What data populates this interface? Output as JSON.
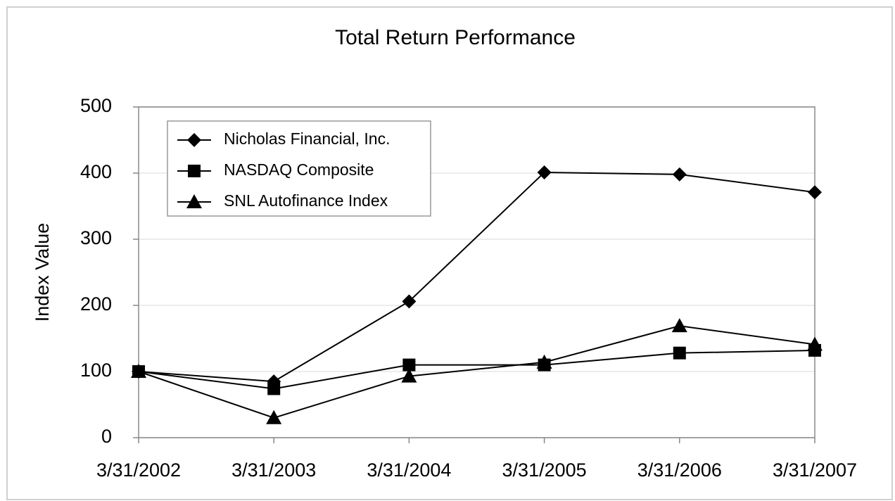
{
  "chart_data": {
    "type": "line",
    "title": "Total Return Performance",
    "y_label": "Index Value",
    "categories": [
      "3/31/2002",
      "3/31/2003",
      "3/31/2004",
      "3/31/2005",
      "3/31/2006",
      "3/31/2007"
    ],
    "series": [
      {
        "name": "Nicholas Financial, Inc.",
        "color": "#000000",
        "marker": "diamond",
        "values": [
          100,
          85,
          206,
          401,
          398,
          371
        ]
      },
      {
        "name": "NASDAQ Composite",
        "color": "#000000",
        "marker": "square",
        "values": [
          100,
          74,
          110,
          110,
          128,
          132
        ]
      },
      {
        "name": "SNL Autofinance Index",
        "color": "#000000",
        "marker": "triangle",
        "values": [
          100,
          30,
          93,
          114,
          169,
          141
        ]
      }
    ],
    "ylim": [
      0,
      500
    ],
    "yticks": [
      0,
      100,
      200,
      300,
      400,
      500
    ],
    "grid": true,
    "legend": "upper left"
  }
}
